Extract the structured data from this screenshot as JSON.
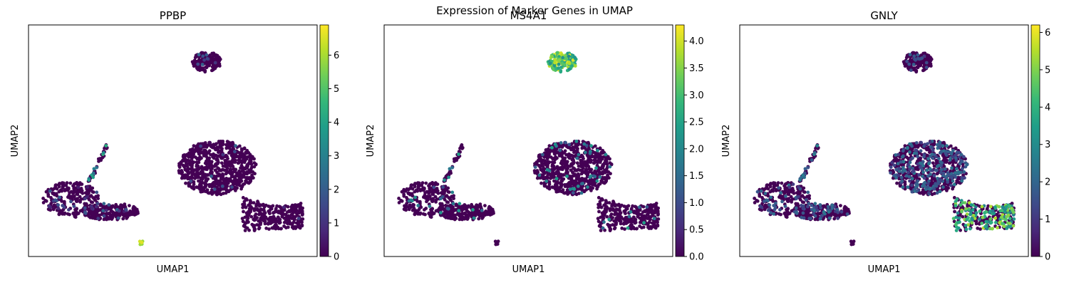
{
  "figure": {
    "title": "Expression of Marker Genes in UMAP"
  },
  "colormap": [
    "#440154",
    "#482878",
    "#3e4989",
    "#31688e",
    "#26828e",
    "#1f9e89",
    "#35b779",
    "#6ece58",
    "#b5de2b",
    "#fde725"
  ],
  "chart_data": [
    {
      "type": "scatter",
      "title": "PPBP",
      "xlabel": "UMAP1",
      "ylabel": "UMAP2",
      "color_by": "PPBP expression",
      "colorbar": {
        "range": [
          0,
          6.9
        ],
        "ticks": [
          "0",
          "1",
          "2",
          "3",
          "4",
          "5",
          "6"
        ]
      },
      "clusters": [
        {
          "name": "top",
          "low": 0,
          "high_fraction": 0.02,
          "high": [
            0,
            2.5
          ]
        },
        {
          "name": "center",
          "low": 0,
          "high_fraction": 0.01,
          "high": [
            0,
            2.5
          ]
        },
        {
          "name": "right",
          "low": 0,
          "high_fraction": 0.01,
          "high": [
            0,
            2.5
          ]
        },
        {
          "name": "left",
          "low": 0,
          "high_fraction": 0.12,
          "high": [
            0.5,
            2.5
          ]
        },
        {
          "name": "bridge",
          "low": 0,
          "high_fraction": 0.3,
          "high": [
            2.5,
            4.5
          ]
        },
        {
          "name": "platelet",
          "low": 6.0,
          "high_fraction": 1.0,
          "high": [
            5.5,
            6.9
          ]
        }
      ]
    },
    {
      "type": "scatter",
      "title": "MS4A1",
      "xlabel": "UMAP1",
      "ylabel": "UMAP2",
      "color_by": "MS4A1 expression",
      "colorbar": {
        "range": [
          0,
          4.3
        ],
        "ticks": [
          "0.0",
          "0.5",
          "1.0",
          "1.5",
          "2.0",
          "2.5",
          "3.0",
          "3.5",
          "4.0"
        ]
      },
      "clusters": [
        {
          "name": "top",
          "low": 2.5,
          "high_fraction": 0.8,
          "high": [
            2.0,
            4.3
          ]
        },
        {
          "name": "center",
          "low": 0,
          "high_fraction": 0.07,
          "high": [
            1.0,
            2.5
          ]
        },
        {
          "name": "right",
          "low": 0,
          "high_fraction": 0.04,
          "high": [
            1.0,
            2.5
          ]
        },
        {
          "name": "left",
          "low": 0,
          "high_fraction": 0.07,
          "high": [
            1.0,
            2.5
          ]
        },
        {
          "name": "bridge",
          "low": 0,
          "high_fraction": 0.2,
          "high": [
            1.5,
            2.5
          ]
        },
        {
          "name": "platelet",
          "low": 0,
          "high_fraction": 0.0,
          "high": [
            0,
            0
          ]
        }
      ]
    },
    {
      "type": "scatter",
      "title": "GNLY",
      "xlabel": "UMAP1",
      "ylabel": "UMAP2",
      "color_by": "GNLY expression",
      "colorbar": {
        "range": [
          0,
          6.2
        ],
        "ticks": [
          "0",
          "1",
          "2",
          "3",
          "4",
          "5",
          "6"
        ]
      },
      "clusters": [
        {
          "name": "top",
          "low": 0,
          "high_fraction": 0.08,
          "high": [
            1.0,
            2.0
          ]
        },
        {
          "name": "center",
          "low": 0,
          "high_fraction": 0.3,
          "high": [
            1.0,
            2.5
          ]
        },
        {
          "name": "right",
          "low": 0,
          "high_fraction": 0.5,
          "high": [
            2.5,
            5.5
          ]
        },
        {
          "name": "left",
          "low": 0,
          "high_fraction": 0.22,
          "high": [
            1.0,
            2.5
          ]
        },
        {
          "name": "bridge",
          "low": 0,
          "high_fraction": 0.35,
          "high": [
            1.5,
            3.0
          ]
        },
        {
          "name": "platelet",
          "low": 0,
          "high_fraction": 0.0,
          "high": [
            0,
            0
          ]
        }
      ]
    }
  ]
}
